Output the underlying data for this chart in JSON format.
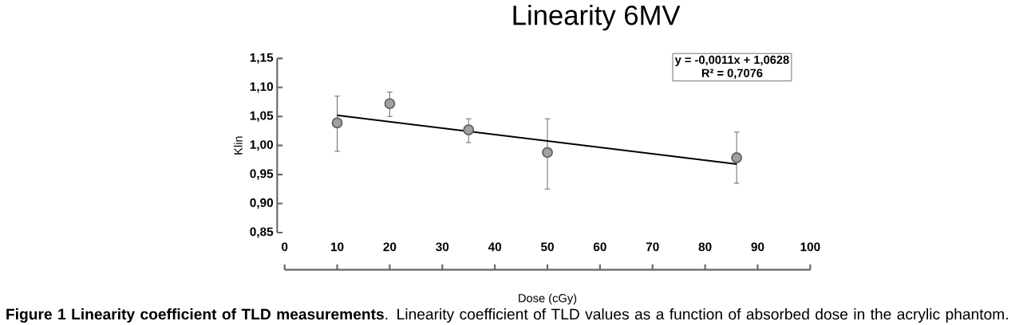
{
  "chart_data": {
    "type": "scatter",
    "title": "Linearity 6MV",
    "xlabel": "Dose (cGy)",
    "ylabel": "Klin",
    "xlim": [
      0,
      100
    ],
    "xticks": [
      0,
      10,
      20,
      30,
      40,
      50,
      60,
      70,
      80,
      90,
      100
    ],
    "ylim": [
      0.85,
      1.15
    ],
    "yticks": [
      {
        "value": 0.85,
        "label": "0,85"
      },
      {
        "value": 0.9,
        "label": "0,90"
      },
      {
        "value": 0.95,
        "label": "0,95"
      },
      {
        "value": 1.0,
        "label": "1,00"
      },
      {
        "value": 1.05,
        "label": "1,05"
      },
      {
        "value": 1.1,
        "label": "1,10"
      },
      {
        "value": 1.15,
        "label": "1,15"
      }
    ],
    "series": [
      {
        "type": "scatter",
        "marker": "circle",
        "color": "#a0a0a0",
        "x": [
          10,
          20,
          35,
          50,
          86
        ],
        "values": [
          1.039,
          1.072,
          1.027,
          0.988,
          0.979
        ],
        "errors": [
          [
            0.99,
            1.085
          ],
          [
            1.05,
            1.092
          ],
          [
            1.005,
            1.046
          ],
          [
            0.925,
            1.046
          ],
          [
            0.935,
            1.023
          ]
        ]
      },
      {
        "type": "line",
        "color": "#000000",
        "x": [
          10,
          86
        ],
        "values": [
          1.052,
          0.968
        ],
        "marker": "none"
      }
    ],
    "annotations": [
      "y = -0,0011x + 1,0628",
      "R² = 0,7076",
      "**Figure 1 Linearity coefficient of TLD measurements**. Linearity coefficient of TLD values as a function of absorbed dose in the acrylic phantom."
    ]
  }
}
